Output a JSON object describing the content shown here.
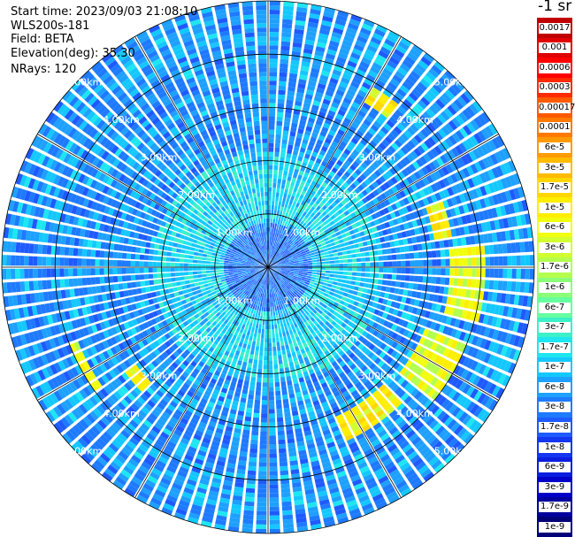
{
  "header": {
    "start_time": "Start time: 2023/09/03 21:08:10",
    "instrument": "WLS200s-181",
    "field": "Field: BETA",
    "elevation": "Elevation(deg): 35.30",
    "nrays": "NRays: 120"
  },
  "chart_data": {
    "type": "heatmap",
    "projection": "polar-ppi",
    "field": "BETA",
    "elevation_deg": 35.3,
    "n_rays": 120,
    "range_rings_km": [
      1.0,
      2.0,
      3.0,
      4.0,
      5.0
    ],
    "ring_labels": [
      "1.00km",
      "2.00km",
      "3.00km",
      "4.00km",
      "5.00km"
    ],
    "max_range_km": 5.0,
    "azimuth_lines_step_deg": 30,
    "background_level": "1e-8 to 1e-7",
    "features": [
      {
        "description_azimuth_deg": [
          30,
          40
        ],
        "range_km": [
          3.6,
          3.9
        ],
        "level": "1e-5"
      },
      {
        "description_azimuth_deg": [
          70,
          80
        ],
        "range_km": [
          3.2,
          3.5
        ],
        "level": "1e-5"
      },
      {
        "description_azimuth_deg": [
          85,
          105
        ],
        "range_km": [
          3.4,
          4.1
        ],
        "level": "6e-6"
      },
      {
        "description_azimuth_deg": [
          110,
          130
        ],
        "range_km": [
          3.2,
          4.0
        ],
        "level": "6e-6"
      },
      {
        "description_azimuth_deg": [
          135,
          155
        ],
        "range_km": [
          3.1,
          3.6
        ],
        "level": "1e-5"
      },
      {
        "description_azimuth_deg": [
          235,
          250
        ],
        "range_km": [
          3.8,
          4.0
        ],
        "level": "6e-6"
      },
      {
        "description_azimuth_deg": [
          225,
          235
        ],
        "range_km": [
          3.1,
          3.3
        ],
        "level": "1e-5"
      }
    ],
    "colorbar": {
      "title": "-1 sr",
      "labels": [
        "0.0017",
        "0.001",
        "0.0006",
        "0.0003",
        "0.00017",
        "0.0001",
        "6e-5",
        "3e-5",
        "1.7e-5",
        "1e-5",
        "6e-6",
        "3e-6",
        "1.7e-6",
        "1e-6",
        "6e-7",
        "3e-7",
        "1.7e-7",
        "1e-7",
        "6e-8",
        "3e-8",
        "1.7e-8",
        "1e-8",
        "6e-9",
        "3e-9",
        "1.7e-9",
        "1e-9"
      ],
      "colors": [
        "#c00000",
        "#e00000",
        "#ff0000",
        "#ff2a00",
        "#ff5a00",
        "#ff7a00",
        "#ff9a00",
        "#ffbb00",
        "#ffd700",
        "#ffee00",
        "#f0ff10",
        "#d2ff30",
        "#b4ff4e",
        "#8cff78",
        "#66ffa0",
        "#3cf0c8",
        "#1ee6f0",
        "#14c8ff",
        "#1ea0ff",
        "#1e7aff",
        "#1e5aff",
        "#1436f0",
        "#0a1ee0",
        "#0000c8",
        "#00009e",
        "#000078"
      ]
    }
  }
}
